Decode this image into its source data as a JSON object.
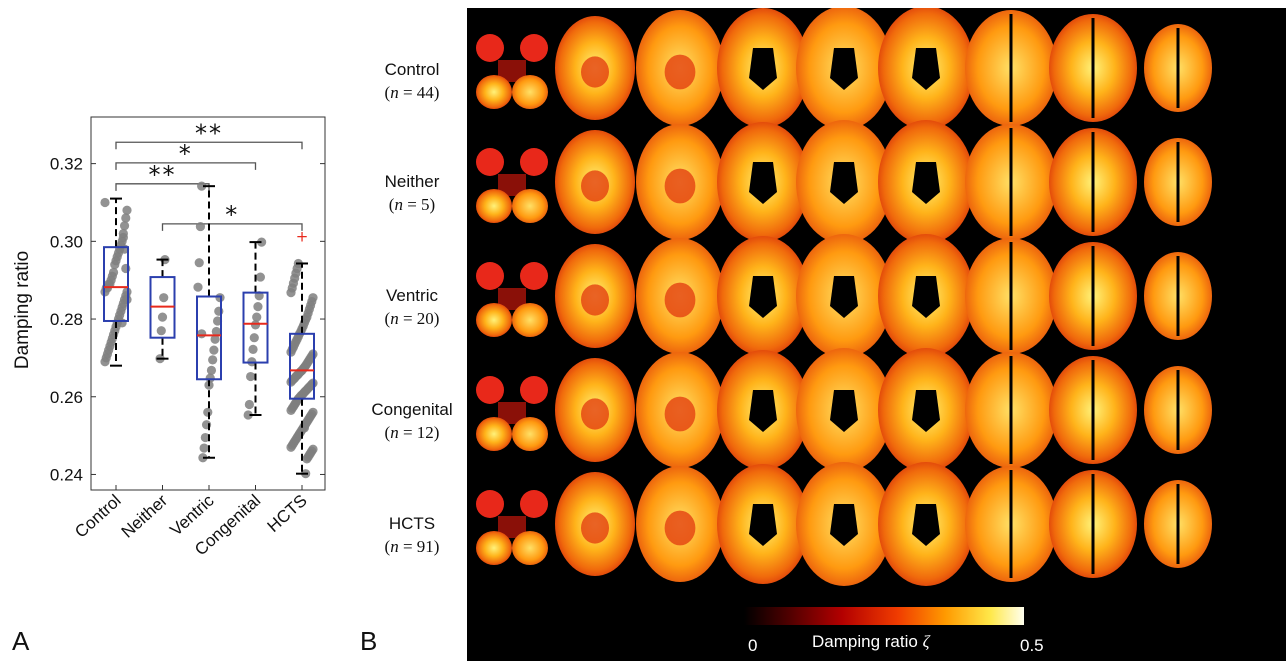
{
  "panel_labels": {
    "a": "A",
    "b": "B"
  },
  "chart_data": [
    {
      "type": "box",
      "panel": "A",
      "ylabel": "Damping ratio",
      "xlabel": "",
      "ylim": [
        0.236,
        0.332
      ],
      "yticks": [
        0.24,
        0.26,
        0.28,
        0.3,
        0.32
      ],
      "ytick_labels": [
        "0.24",
        "0.26",
        "0.28",
        "0.30",
        "0.32"
      ],
      "categories": [
        "Control",
        "Neither",
        "Ventric",
        "Congenital",
        "HCTS"
      ],
      "box_color": "#2b3fae",
      "median_color": "#e8291c",
      "point_color": "#7f7f7f",
      "outlier_color": "#e8291c",
      "boxes": [
        {
          "name": "Control",
          "q1": 0.2795,
          "median": 0.2882,
          "q3": 0.2985,
          "whisker_low": 0.268,
          "whisker_high": 0.311,
          "outliers": []
        },
        {
          "name": "Neither",
          "q1": 0.2752,
          "median": 0.2832,
          "q3": 0.2908,
          "whisker_low": 0.2698,
          "whisker_high": 0.2953,
          "outliers": []
        },
        {
          "name": "Ventric",
          "q1": 0.2645,
          "median": 0.2758,
          "q3": 0.2858,
          "whisker_low": 0.2443,
          "whisker_high": 0.3142,
          "outliers": []
        },
        {
          "name": "Congenital",
          "q1": 0.2688,
          "median": 0.2788,
          "q3": 0.2868,
          "whisker_low": 0.2553,
          "whisker_high": 0.2998,
          "outliers": []
        },
        {
          "name": "HCTS",
          "q1": 0.2595,
          "median": 0.2668,
          "q3": 0.2762,
          "whisker_low": 0.2402,
          "whisker_high": 0.2943,
          "outliers": [
            0.3012
          ]
        }
      ],
      "points": [
        [
          0.31,
          0.308,
          0.306,
          0.304,
          0.302,
          0.3,
          0.299,
          0.298,
          0.297,
          0.296,
          0.295,
          0.294,
          0.292,
          0.291,
          0.29,
          0.289,
          0.289,
          0.288,
          0.288,
          0.287,
          0.287,
          0.286,
          0.285,
          0.284,
          0.283,
          0.282,
          0.281,
          0.28,
          0.279,
          0.278,
          0.277,
          0.276,
          0.275,
          0.274,
          0.273,
          0.272,
          0.271,
          0.27,
          0.269,
          0.285,
          0.293,
          0.298,
          0.301,
          0.279
        ],
        [
          0.2953,
          0.2855,
          0.2805,
          0.277,
          0.2698
        ],
        [
          0.3142,
          0.3038,
          0.2945,
          0.2882,
          0.2855,
          0.282,
          0.2795,
          0.2768,
          0.2748,
          0.272,
          0.2695,
          0.2668,
          0.2648,
          0.263,
          0.256,
          0.2528,
          0.2495,
          0.2468,
          0.2443,
          0.2762
        ],
        [
          0.2998,
          0.2908,
          0.286,
          0.2832,
          0.2805,
          0.2785,
          0.2752,
          0.2722,
          0.269,
          0.2652,
          0.258,
          0.2553
        ],
        [
          0.2943,
          0.293,
          0.2918,
          0.2905,
          0.2892,
          0.288,
          0.2868,
          0.2855,
          0.2845,
          0.2835,
          0.2825,
          0.2815,
          0.2805,
          0.2798,
          0.279,
          0.2782,
          0.2775,
          0.2768,
          0.2762,
          0.2755,
          0.2748,
          0.2742,
          0.2735,
          0.2728,
          0.2722,
          0.2715,
          0.271,
          0.2705,
          0.27,
          0.2695,
          0.269,
          0.2685,
          0.268,
          0.2676,
          0.2672,
          0.2668,
          0.2665,
          0.2662,
          0.2658,
          0.2655,
          0.2652,
          0.2648,
          0.2645,
          0.2642,
          0.2638,
          0.2635,
          0.2632,
          0.2628,
          0.2625,
          0.2622,
          0.2618,
          0.2615,
          0.2612,
          0.2608,
          0.2605,
          0.2602,
          0.2598,
          0.2595,
          0.259,
          0.2585,
          0.258,
          0.2575,
          0.257,
          0.2565,
          0.256,
          0.2555,
          0.255,
          0.2545,
          0.254,
          0.2535,
          0.253,
          0.2525,
          0.252,
          0.2515,
          0.251,
          0.2505,
          0.25,
          0.2495,
          0.249,
          0.2485,
          0.248,
          0.2475,
          0.247,
          0.2465,
          0.246,
          0.2455,
          0.245,
          0.2445,
          0.244,
          0.2402,
          0.252
        ]
      ],
      "significance": [
        {
          "from": "Control",
          "to": "HCTS",
          "label": "**",
          "y": 0.3255
        },
        {
          "from": "Control",
          "to": "Congenital",
          "label": "*",
          "y": 0.3202
        },
        {
          "from": "Control",
          "to": "Ventric",
          "label": "**",
          "y": 0.3148
        },
        {
          "from": "Neither",
          "to": "HCTS",
          "label": "*",
          "y": 0.3045
        }
      ]
    },
    {
      "type": "heatmap",
      "panel": "B",
      "title": "",
      "rows": [
        {
          "group": "Control",
          "n_label": "= 44)"
        },
        {
          "group": "Neither",
          "n_label": "= 5)"
        },
        {
          "group": "Ventric",
          "n_label": "= 20)"
        },
        {
          "group": "Congenital",
          "n_label": "= 12)"
        },
        {
          "group": "HCTS",
          "n_label": "= 91)"
        }
      ],
      "n_symbol": "n",
      "n_prefix": "(",
      "slices_per_row": 9,
      "colorbar": {
        "label_text": "Damping ratio ",
        "label_symbol": "ζ",
        "min_label": "0",
        "max_label": "0.5",
        "min": 0,
        "max": 0.5,
        "colormap": "hot"
      }
    }
  ]
}
